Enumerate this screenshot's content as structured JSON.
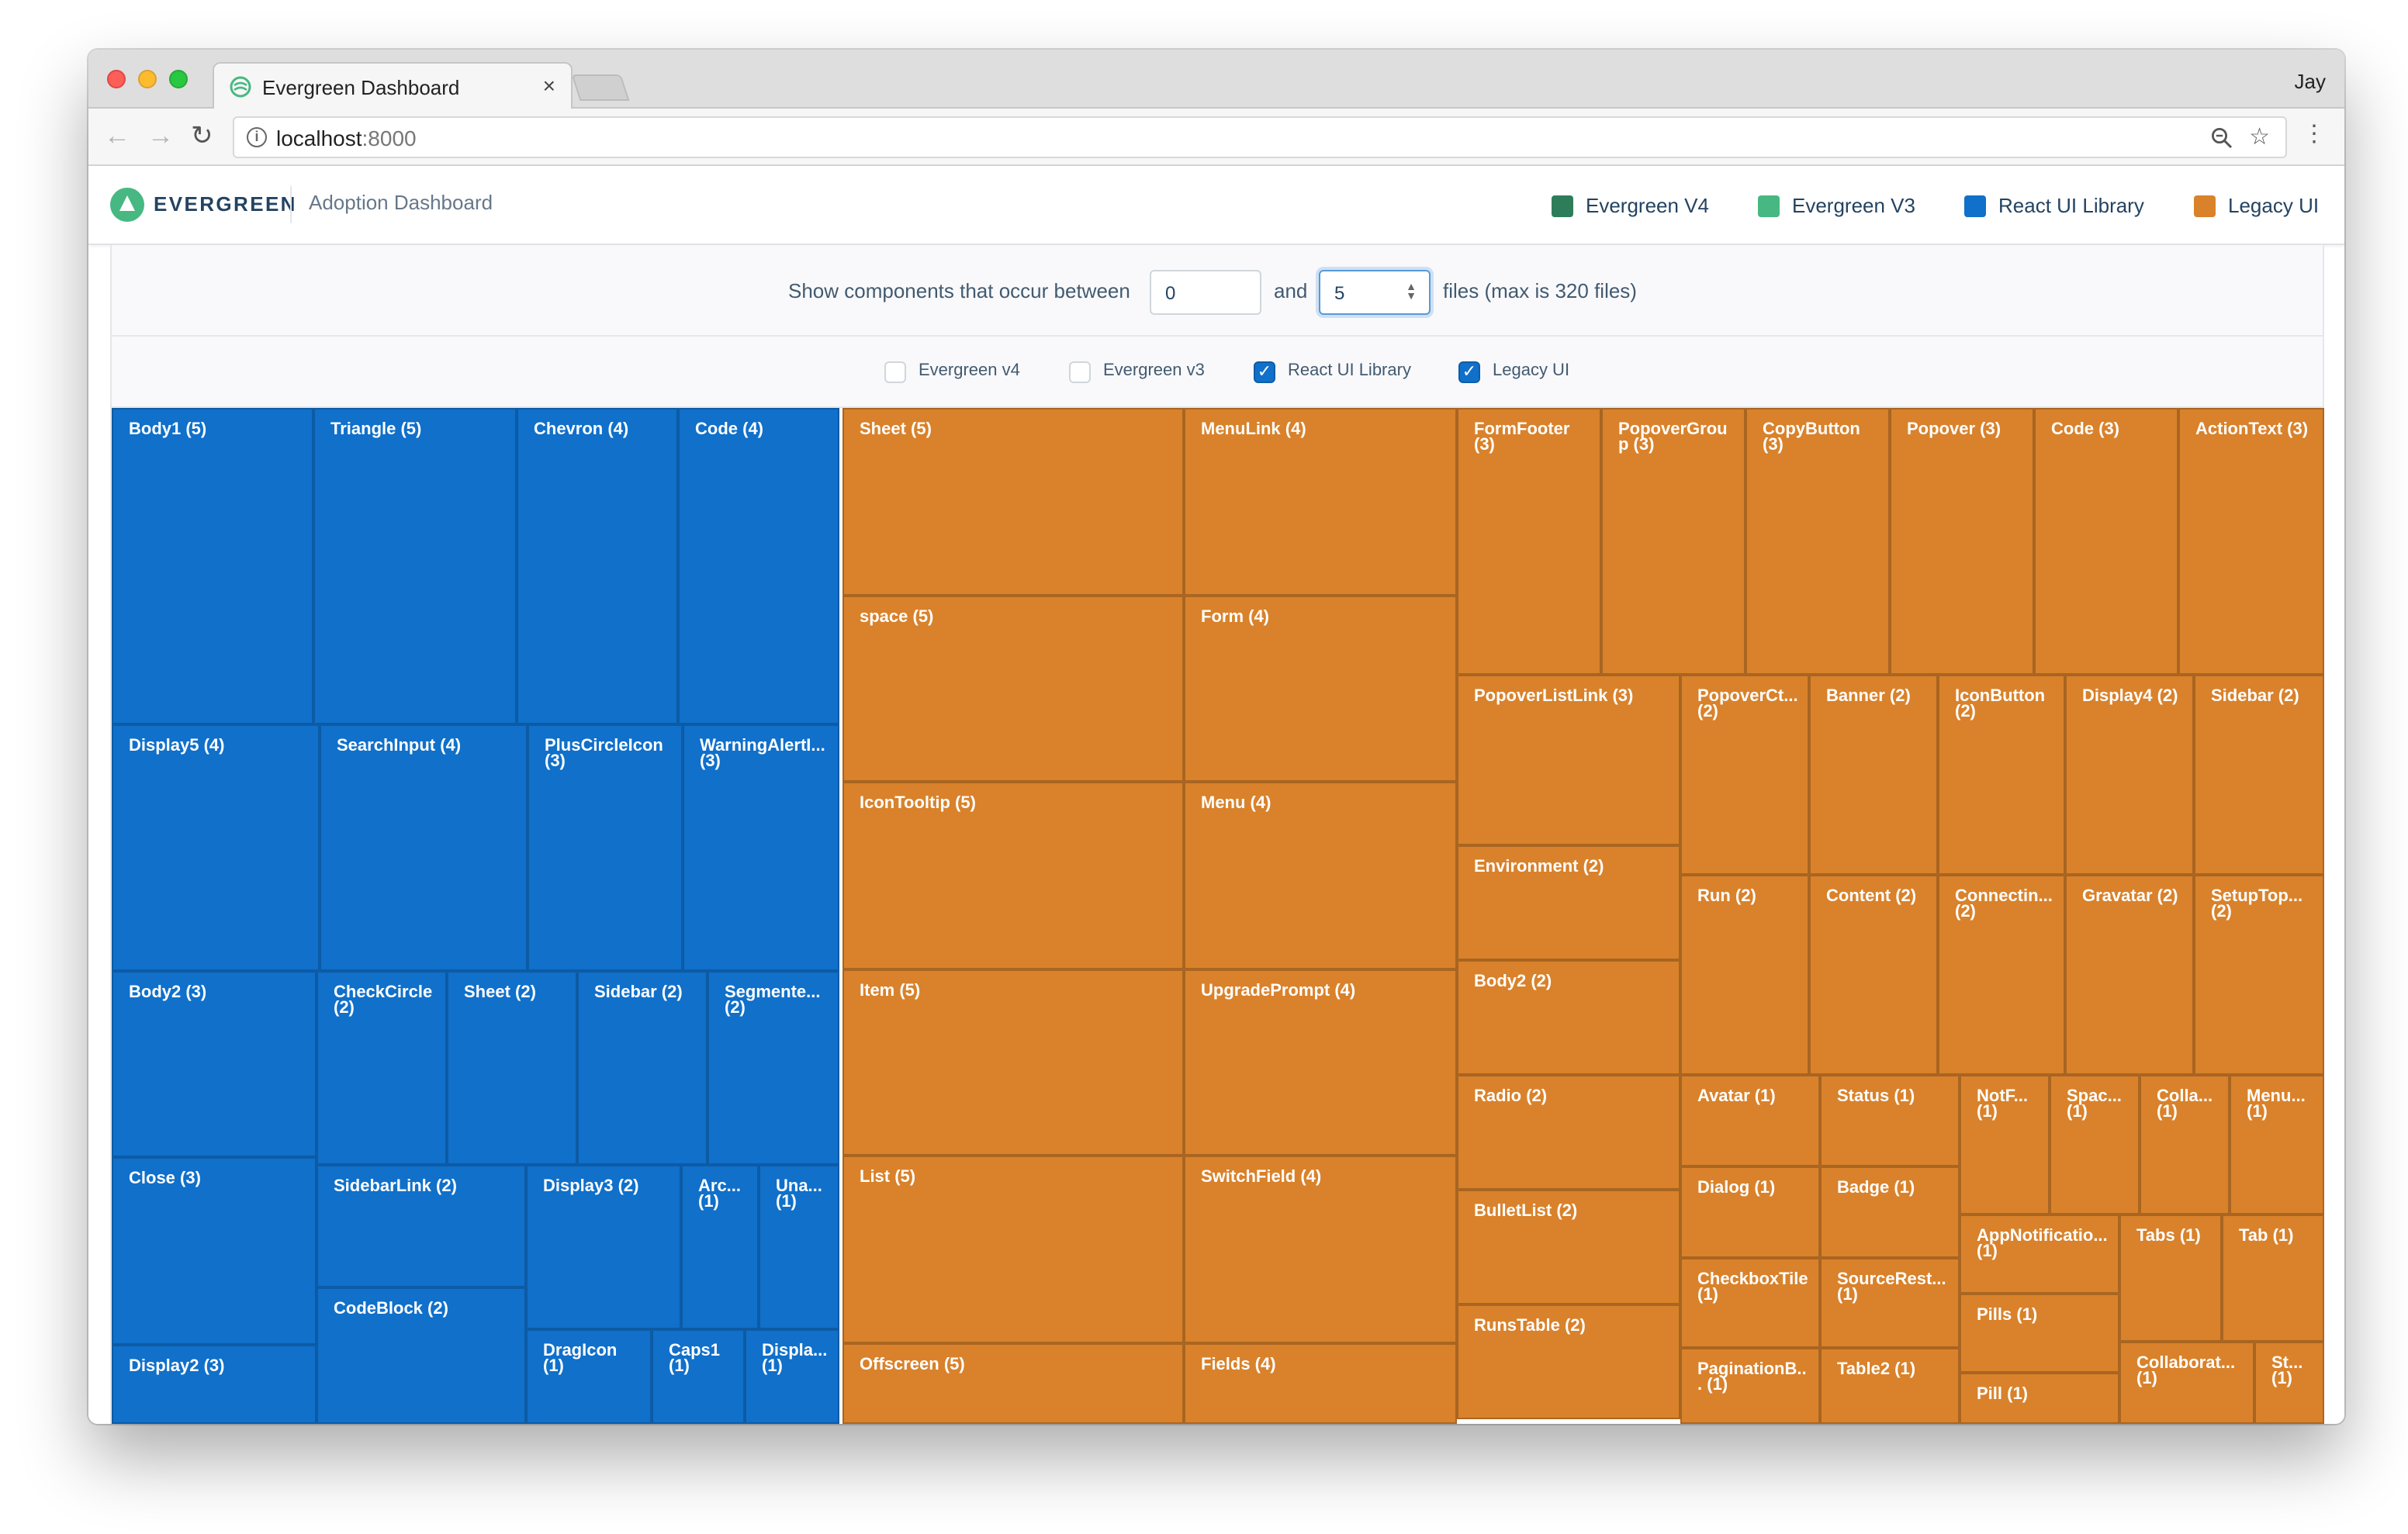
{
  "browser": {
    "tab_title": "Evergreen Dashboard",
    "tab_close": "×",
    "profile_name": "Jay",
    "url_host": "localhost",
    "url_port": ":8000"
  },
  "header": {
    "brand": "EVERGREEN",
    "title": "Adoption Dashboard",
    "legend": [
      {
        "label": "Evergreen V4",
        "color": "#2e7d5a"
      },
      {
        "label": "Evergreen V3",
        "color": "#47b881"
      },
      {
        "label": "React UI Library",
        "color": "#1070ca"
      },
      {
        "label": "Legacy UI",
        "color": "#d9822b"
      }
    ]
  },
  "filter": {
    "prefix": "Show components that occur between",
    "min_value": "0",
    "between": "and",
    "max_value": "5",
    "suffix": "files (max is 320 files)"
  },
  "checkboxes": [
    {
      "label": "Evergreen v4",
      "checked": false
    },
    {
      "label": "Evergreen v3",
      "checked": false
    },
    {
      "label": "React UI Library",
      "checked": true
    },
    {
      "label": "Legacy UI",
      "checked": true
    }
  ],
  "colors": {
    "react": "#1070ca",
    "legacy": "#d9822b"
  },
  "treemap": {
    "react": [
      {
        "label": "Body1 (5)",
        "r": [
          0,
          0,
          130,
          204
        ]
      },
      {
        "label": "Triangle (5)",
        "r": [
          130,
          0,
          131,
          204
        ]
      },
      {
        "label": "Chevron (4)",
        "r": [
          261,
          0,
          104,
          204
        ]
      },
      {
        "label": "Code (4)",
        "r": [
          365,
          0,
          104,
          204
        ]
      },
      {
        "label": "Display5 (4)",
        "r": [
          0,
          204,
          134,
          159
        ]
      },
      {
        "label": "SearchInput (4)",
        "r": [
          134,
          204,
          134,
          159
        ]
      },
      {
        "label": "PlusCircleIcon (3)",
        "r": [
          268,
          204,
          100,
          159
        ]
      },
      {
        "label": "WarningAlertI... (3)",
        "r": [
          368,
          204,
          101,
          159
        ]
      },
      {
        "label": "Body2 (3)",
        "r": [
          0,
          363,
          132,
          120
        ]
      },
      {
        "label": "CheckCircle (2)",
        "r": [
          132,
          363,
          84,
          125
        ]
      },
      {
        "label": "Sheet (2)",
        "r": [
          216,
          363,
          84,
          125
        ]
      },
      {
        "label": "Sidebar (2)",
        "r": [
          300,
          363,
          84,
          125
        ]
      },
      {
        "label": "Segmente... (2)",
        "r": [
          384,
          363,
          85,
          125
        ]
      },
      {
        "label": "Close (3)",
        "r": [
          0,
          483,
          132,
          121
        ]
      },
      {
        "label": "SidebarLink (2)",
        "r": [
          132,
          488,
          135,
          79
        ]
      },
      {
        "label": "Display3 (2)",
        "r": [
          267,
          488,
          100,
          106
        ]
      },
      {
        "label": "Arc... (1)",
        "r": [
          367,
          488,
          50,
          106
        ]
      },
      {
        "label": "Una... (1)",
        "r": [
          417,
          488,
          52,
          106
        ]
      },
      {
        "label": "CodeBlock (2)",
        "r": [
          132,
          567,
          135,
          88
        ]
      },
      {
        "label": "Display2 (3)",
        "r": [
          0,
          604,
          132,
          51
        ]
      },
      {
        "label": "DragIcon (1)",
        "r": [
          267,
          594,
          81,
          61
        ]
      },
      {
        "label": "Caps1 (1)",
        "r": [
          348,
          594,
          60,
          61
        ]
      },
      {
        "label": "Displa... (1)",
        "r": [
          408,
          594,
          61,
          61
        ]
      }
    ],
    "legacy": [
      {
        "label": "Sheet (5)",
        "r": [
          471,
          0,
          220,
          121
        ]
      },
      {
        "label": "MenuLink (4)",
        "r": [
          691,
          0,
          176,
          121
        ]
      },
      {
        "label": "space (5)",
        "r": [
          471,
          121,
          220,
          120
        ]
      },
      {
        "label": "Form (4)",
        "r": [
          691,
          121,
          176,
          120
        ]
      },
      {
        "label": "IconTooltip (5)",
        "r": [
          471,
          241,
          220,
          121
        ]
      },
      {
        "label": "Menu (4)",
        "r": [
          691,
          241,
          176,
          121
        ]
      },
      {
        "label": "Item (5)",
        "r": [
          471,
          362,
          220,
          120
        ]
      },
      {
        "label": "UpgradePrompt (4)",
        "r": [
          691,
          362,
          176,
          120
        ]
      },
      {
        "label": "List (5)",
        "r": [
          471,
          482,
          220,
          121
        ]
      },
      {
        "label": "SwitchField (4)",
        "r": [
          691,
          482,
          176,
          121
        ]
      },
      {
        "label": "Offscreen (5)",
        "r": [
          471,
          603,
          220,
          52
        ]
      },
      {
        "label": "Fields (4)",
        "r": [
          691,
          603,
          176,
          52
        ]
      },
      {
        "label": "FormFooter (3)",
        "r": [
          867,
          0,
          93,
          172
        ]
      },
      {
        "label": "PopoverGroup (3)",
        "r": [
          960,
          0,
          93,
          172
        ]
      },
      {
        "label": "CopyButton (3)",
        "r": [
          1053,
          0,
          93,
          172
        ]
      },
      {
        "label": "Popover (3)",
        "r": [
          1146,
          0,
          93,
          172
        ]
      },
      {
        "label": "Code (3)",
        "r": [
          1239,
          0,
          93,
          172
        ]
      },
      {
        "label": "ActionText (3)",
        "r": [
          1332,
          0,
          94,
          172
        ]
      },
      {
        "label": "PopoverListLink (3)",
        "r": [
          867,
          172,
          144,
          110
        ]
      },
      {
        "label": "Environment (2)",
        "r": [
          867,
          282,
          144,
          74
        ]
      },
      {
        "label": "Body2 (2)",
        "r": [
          867,
          356,
          144,
          74
        ]
      },
      {
        "label": "Radio (2)",
        "r": [
          867,
          430,
          144,
          74
        ]
      },
      {
        "label": "BulletList (2)",
        "r": [
          867,
          504,
          144,
          74
        ]
      },
      {
        "label": "RunsTable (2)",
        "r": [
          867,
          578,
          144,
          74
        ]
      },
      {
        "label": "PopoverCt... (2)",
        "r": [
          1011,
          172,
          83,
          129
        ]
      },
      {
        "label": "Banner (2)",
        "r": [
          1094,
          172,
          83,
          129
        ]
      },
      {
        "label": "IconButton (2)",
        "r": [
          1177,
          172,
          82,
          129
        ]
      },
      {
        "label": "Display4 (2)",
        "r": [
          1259,
          172,
          83,
          129
        ]
      },
      {
        "label": "Sidebar (2)",
        "r": [
          1342,
          172,
          84,
          129
        ]
      },
      {
        "label": "Run (2)",
        "r": [
          1011,
          301,
          83,
          129
        ]
      },
      {
        "label": "Content (2)",
        "r": [
          1094,
          301,
          83,
          129
        ]
      },
      {
        "label": "Connectin... (2)",
        "r": [
          1177,
          301,
          82,
          129
        ]
      },
      {
        "label": "Gravatar (2)",
        "r": [
          1259,
          301,
          83,
          129
        ]
      },
      {
        "label": "SetupTop... (2)",
        "r": [
          1342,
          301,
          84,
          129
        ]
      },
      {
        "label": "Avatar (1)",
        "r": [
          1011,
          430,
          90,
          59
        ]
      },
      {
        "label": "Status (1)",
        "r": [
          1101,
          430,
          90,
          59
        ]
      },
      {
        "label": "Dialog (1)",
        "r": [
          1011,
          489,
          90,
          59
        ]
      },
      {
        "label": "Badge (1)",
        "r": [
          1101,
          489,
          90,
          59
        ]
      },
      {
        "label": "CheckboxTile (1)",
        "r": [
          1011,
          548,
          90,
          58
        ]
      },
      {
        "label": "SourceRest... (1)",
        "r": [
          1101,
          548,
          90,
          58
        ]
      },
      {
        "label": "PaginationB... (1)",
        "r": [
          1011,
          606,
          90,
          49
        ]
      },
      {
        "label": "Table2 (1)",
        "r": [
          1101,
          606,
          90,
          49
        ]
      },
      {
        "label": "NotF... (1)",
        "r": [
          1191,
          430,
          58,
          90
        ]
      },
      {
        "label": "Spac... (1)",
        "r": [
          1249,
          430,
          58,
          90
        ]
      },
      {
        "label": "Colla... (1)",
        "r": [
          1307,
          430,
          58,
          90
        ]
      },
      {
        "label": "Menu... (1)",
        "r": [
          1365,
          430,
          61,
          90
        ]
      },
      {
        "label": "AppNotificatio... (1)",
        "r": [
          1191,
          520,
          103,
          51
        ]
      },
      {
        "label": "Pills (1)",
        "r": [
          1191,
          571,
          103,
          51
        ]
      },
      {
        "label": "Pill (1)",
        "r": [
          1191,
          622,
          103,
          33
        ]
      },
      {
        "label": "Tabs (1)",
        "r": [
          1294,
          520,
          66,
          82
        ]
      },
      {
        "label": "Tab (1)",
        "r": [
          1360,
          520,
          66,
          82
        ]
      },
      {
        "label": "Collaborat... (1)",
        "r": [
          1294,
          602,
          87,
          53
        ]
      },
      {
        "label": "St... (1)",
        "r": [
          1381,
          602,
          45,
          53
        ]
      }
    ]
  }
}
